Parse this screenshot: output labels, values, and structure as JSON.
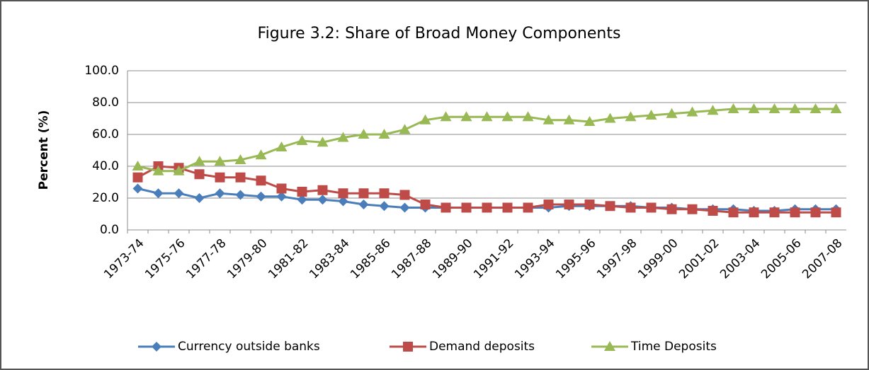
{
  "chart_data": {
    "type": "line",
    "title": "Figure 3.2: Share of Broad Money Components",
    "y_label": "Percent (%)",
    "categories": [
      "1973-74",
      null,
      "1975-76",
      null,
      "1977-78",
      null,
      "1979-80",
      null,
      "1981-82",
      null,
      "1983-84",
      null,
      "1985-86",
      null,
      "1987-88",
      null,
      "1989-90",
      null,
      "1991-92",
      null,
      "1993-94",
      null,
      "1995-96",
      null,
      "1997-98",
      null,
      "1999-00",
      null,
      "2001-02",
      null,
      "2003-04",
      null,
      "2005-06",
      null,
      "2007-08"
    ],
    "series": [
      {
        "name": "Currency outside banks",
        "color": "#4a7ebb",
        "marker": "diamond",
        "values": [
          26,
          23,
          23,
          20,
          23,
          22,
          21,
          21,
          19,
          19,
          18,
          16,
          15,
          14,
          14,
          14,
          14,
          14,
          14,
          14,
          14,
          15,
          15,
          15,
          15,
          14,
          14,
          13,
          13,
          13,
          12,
          12,
          13,
          13,
          13
        ]
      },
      {
        "name": "Demand deposits",
        "color": "#be4b48",
        "marker": "square",
        "values": [
          33,
          40,
          39,
          35,
          33,
          33,
          31,
          26,
          24,
          25,
          23,
          23,
          23,
          22,
          16,
          14,
          14,
          14,
          14,
          14,
          16,
          16,
          16,
          15,
          14,
          14,
          13,
          13,
          12,
          11,
          11,
          11,
          11,
          11,
          11
        ]
      },
      {
        "name": "Time Deposits",
        "color": "#98b954",
        "marker": "triangle",
        "values": [
          40,
          37,
          37,
          43,
          43,
          44,
          47,
          52,
          56,
          55,
          58,
          60,
          60,
          63,
          69,
          71,
          71,
          71,
          71,
          71,
          69,
          69,
          68,
          70,
          71,
          72,
          73,
          74,
          75,
          76,
          76,
          76,
          76,
          76,
          76
        ]
      }
    ],
    "ylim": [
      0,
      100
    ],
    "yticks": [
      {
        "value": 0,
        "label": "0.0"
      },
      {
        "value": 20,
        "label": "20.0"
      },
      {
        "value": 40,
        "label": "40.0"
      },
      {
        "value": 60,
        "label": "60.0"
      },
      {
        "value": 80,
        "label": "80.0"
      },
      {
        "value": 100,
        "label": "100.0"
      }
    ],
    "grid": true,
    "legend": "bottom"
  }
}
